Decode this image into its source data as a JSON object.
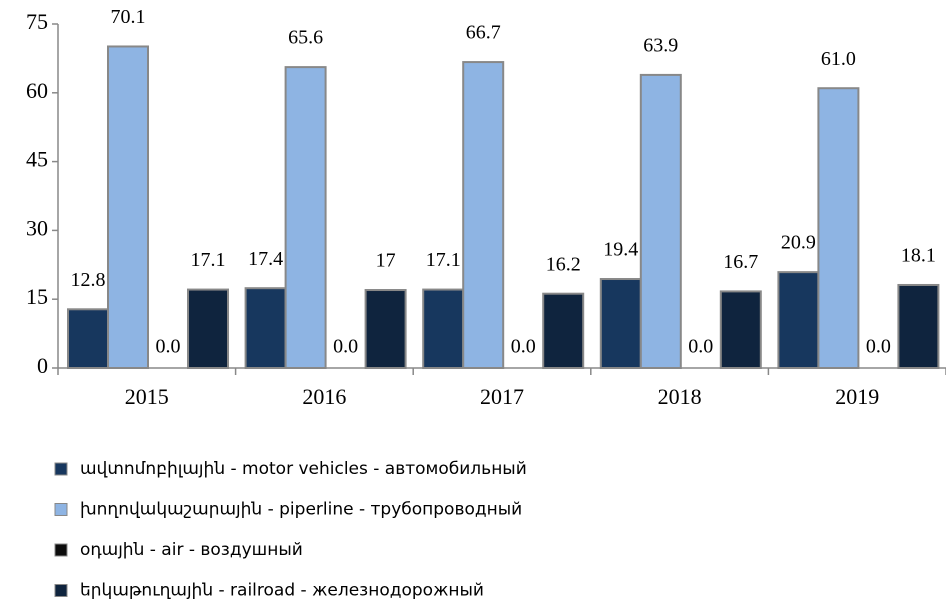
{
  "chart_data": {
    "type": "bar",
    "categories": [
      "2015",
      "2016",
      "2017",
      "2018",
      "2019"
    ],
    "series": [
      {
        "name": "ավտոմոբիլային - motor vehicles - автомобильный",
        "color": "#17375e",
        "values": [
          12.8,
          17.4,
          17.1,
          19.4,
          20.9
        ]
      },
      {
        "name": "խողովակաշարային - piperline - трубопроводный",
        "color": "#8eb4e3",
        "values": [
          70.1,
          65.6,
          66.7,
          63.9,
          61.0
        ],
        "value_labels": [
          "70.1",
          "65.6",
          "66.7",
          "63.9",
          "61.0"
        ]
      },
      {
        "name": "օդային - air - воздушный",
        "color": "#0d0d0d",
        "values": [
          0,
          0,
          0,
          0,
          0
        ],
        "value_labels": [
          "0.0",
          "0.0",
          "0.0",
          "0.0",
          "0.0"
        ]
      },
      {
        "name": "երկաթուղային - railroad - железнодорожный",
        "color": "#0f243e",
        "values": [
          17.1,
          17.0,
          16.2,
          16.7,
          18.1
        ]
      }
    ],
    "ylim": [
      0,
      75
    ],
    "yticks": [
      0,
      15,
      30,
      45,
      60,
      75
    ]
  }
}
